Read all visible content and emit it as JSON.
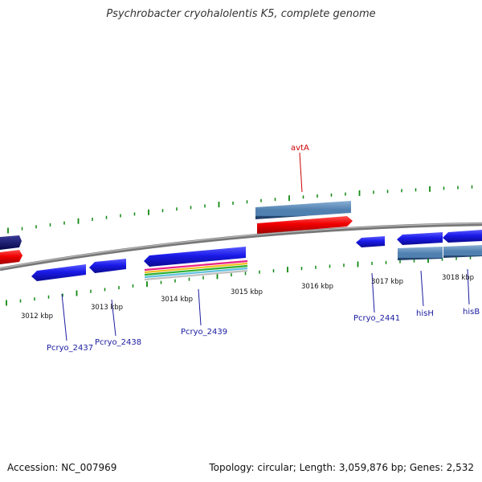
{
  "title": "Psychrobacter cryohalolentis K5, complete genome",
  "footer": {
    "accession": "Accession: NC_007969",
    "summary": "Topology: circular; Length: 3,059,876 bp; Genes: 2,532"
  },
  "colors": {
    "gene_blue": "#1010e8",
    "gene_red": "#f00000",
    "gene_steel": "#5080b0",
    "gene_navy": "#0a0a6a",
    "tick_green": "#118811",
    "label_blue": "#1a1aa0",
    "label_red": "#cc0000",
    "backbone": "#888888"
  },
  "scale_labels": [
    {
      "label": "3012 kbp"
    },
    {
      "label": "3013 kbp"
    },
    {
      "label": "3014 kbp"
    },
    {
      "label": "3015 kbp"
    },
    {
      "label": "3016 kbp"
    },
    {
      "label": "3017 kbp"
    },
    {
      "label": "3018 kbp"
    }
  ],
  "gene_labels": [
    {
      "label": "avtA",
      "color": "#cc0000"
    },
    {
      "label": "Pcryo_2437",
      "color": "#1a1aa0"
    },
    {
      "label": "Pcryo_2438",
      "color": "#1a1aa0"
    },
    {
      "label": "Pcryo_2439",
      "color": "#1a1aa0"
    },
    {
      "label": "Pcryo_2441",
      "color": "#1a1aa0"
    },
    {
      "label": "hisH",
      "color": "#1a1aa0"
    },
    {
      "label": "hisB",
      "color": "#1a1aa0"
    }
  ]
}
